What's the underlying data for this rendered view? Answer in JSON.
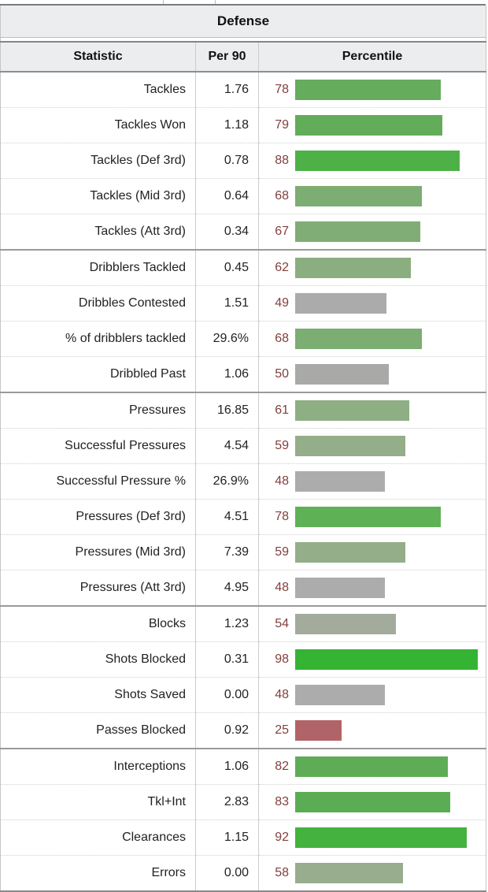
{
  "section": {
    "title": "Defense",
    "pct_text_color": "#823f3d",
    "header_bg": "#ecedee",
    "bar_colors": {
      "low": "#b16467",
      "mid_gray": "#acacac",
      "high": "#35b434"
    }
  },
  "chart_data": {
    "type": "table",
    "title": "Defense",
    "columns": [
      "Statistic",
      "Per 90",
      "Percentile"
    ],
    "percentile_axis": [
      0,
      100
    ],
    "legend_position": "none",
    "groups": [
      {
        "rows": [
          {
            "stat": "Tackles",
            "per90": "1.76",
            "percentile": 78,
            "color": "#65ac5c"
          },
          {
            "stat": "Tackles Won",
            "per90": "1.18",
            "percentile": 79,
            "color": "#63ac5a"
          },
          {
            "stat": "Tackles (Def 3rd)",
            "per90": "0.78",
            "percentile": 88,
            "color": "#4eb148"
          },
          {
            "stat": "Tackles (Mid 3rd)",
            "per90": "0.64",
            "percentile": 68,
            "color": "#7cad72"
          },
          {
            "stat": "Tackles (Att 3rd)",
            "per90": "0.34",
            "percentile": 67,
            "color": "#7fad75"
          }
        ]
      },
      {
        "rows": [
          {
            "stat": "Dribblers Tackled",
            "per90": "0.45",
            "percentile": 62,
            "color": "#8bae80"
          },
          {
            "stat": "Dribbles Contested",
            "per90": "1.51",
            "percentile": 49,
            "color": "#ababab"
          },
          {
            "stat": "% of dribblers tackled",
            "per90": "29.6%",
            "percentile": 68,
            "color": "#7cad72"
          },
          {
            "stat": "Dribbled Past",
            "per90": "1.06",
            "percentile": 50,
            "color": "#a9aaa7"
          }
        ]
      },
      {
        "rows": [
          {
            "stat": "Pressures",
            "per90": "16.85",
            "percentile": 61,
            "color": "#8daf83"
          },
          {
            "stat": "Successful Pressures",
            "per90": "4.54",
            "percentile": 59,
            "color": "#94ae89"
          },
          {
            "stat": "Successful Pressure %",
            "per90": "26.9%",
            "percentile": 48,
            "color": "#acacac"
          },
          {
            "stat": "Pressures (Def 3rd)",
            "per90": "4.51",
            "percentile": 78,
            "color": "#5fb156"
          },
          {
            "stat": "Pressures (Mid 3rd)",
            "per90": "7.39",
            "percentile": 59,
            "color": "#94ae89"
          },
          {
            "stat": "Pressures (Att 3rd)",
            "per90": "4.95",
            "percentile": 48,
            "color": "#acacac"
          }
        ]
      },
      {
        "rows": [
          {
            "stat": "Blocks",
            "per90": "1.23",
            "percentile": 54,
            "color": "#a2ab9c"
          },
          {
            "stat": "Shots Blocked",
            "per90": "0.31",
            "percentile": 98,
            "color": "#35b434"
          },
          {
            "stat": "Shots Saved",
            "per90": "0.00",
            "percentile": 48,
            "color": "#acacac"
          },
          {
            "stat": "Passes Blocked",
            "per90": "0.92",
            "percentile": 25,
            "color": "#b16467"
          }
        ]
      },
      {
        "rows": [
          {
            "stat": "Interceptions",
            "per90": "1.06",
            "percentile": 82,
            "color": "#5ead56"
          },
          {
            "stat": "Tkl+Int",
            "per90": "2.83",
            "percentile": 83,
            "color": "#5bad53"
          },
          {
            "stat": "Clearances",
            "per90": "1.15",
            "percentile": 92,
            "color": "#44b23f"
          },
          {
            "stat": "Errors",
            "per90": "0.00",
            "percentile": 58,
            "color": "#97ad8e"
          }
        ]
      }
    ]
  }
}
